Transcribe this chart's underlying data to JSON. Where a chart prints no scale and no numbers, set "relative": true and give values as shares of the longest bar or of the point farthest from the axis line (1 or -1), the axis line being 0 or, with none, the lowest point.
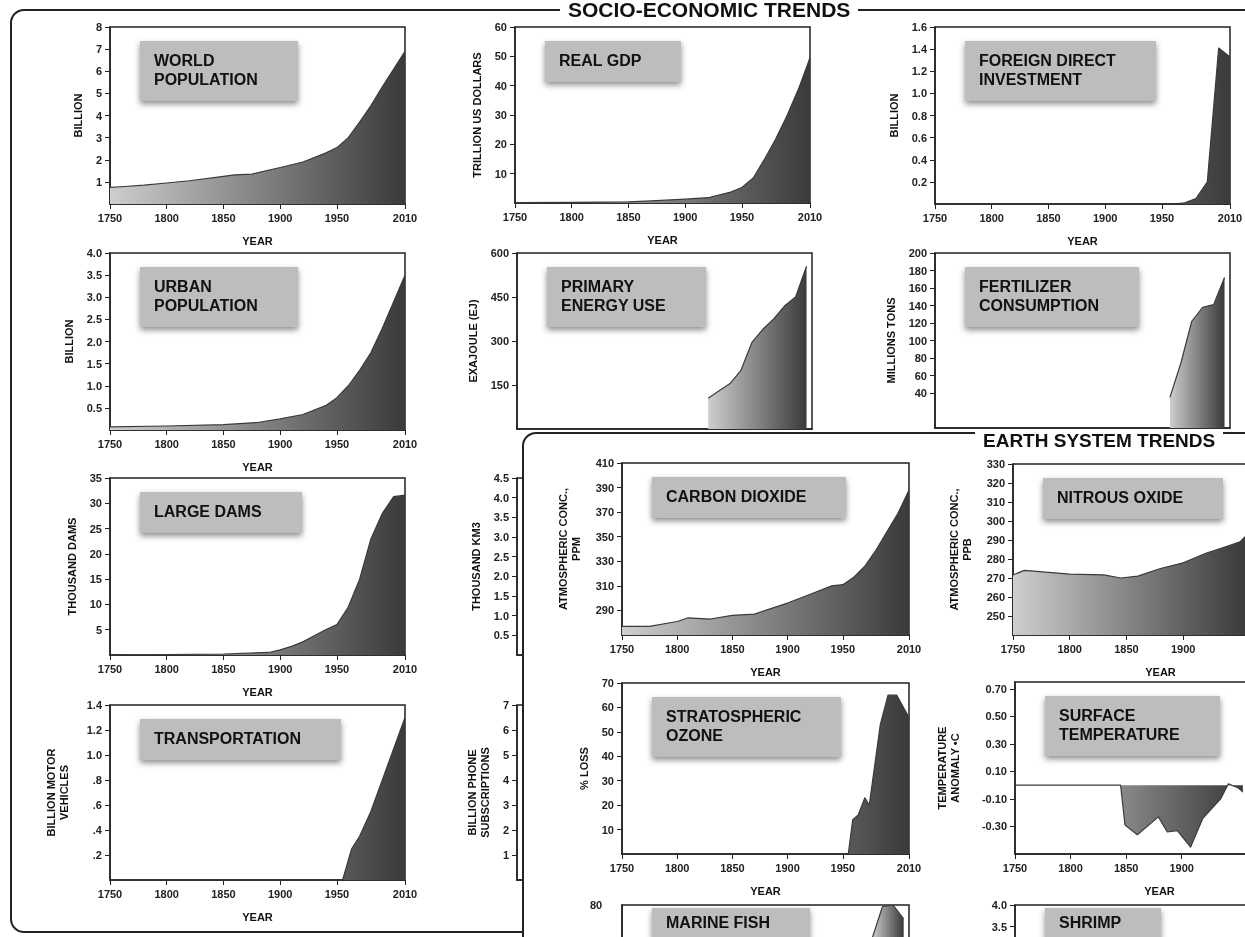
{
  "chart_data": [
    {
      "type": "other",
      "title": "SOCIO-ECONOMIC TRENDS"
    },
    {
      "type": "area",
      "title": "WORLD\nPOPULATION",
      "xlabel": "YEAR",
      "ylabel": "BILLION",
      "color": "#3a3a3a",
      "marker": "none",
      "xlim": [
        1750,
        2010
      ],
      "xticks": [
        1750,
        1800,
        1850,
        1900,
        1950,
        2010
      ],
      "ylim": [
        0,
        8
      ],
      "yticks": [
        1,
        2,
        3,
        4,
        5,
        6,
        7,
        8
      ],
      "x": [
        1750,
        1760,
        1780,
        1800,
        1820,
        1850,
        1860,
        1875,
        1900,
        1920,
        1940,
        1950,
        1960,
        1970,
        1980,
        1990,
        2000,
        2010
      ],
      "values": [
        0.75,
        0.78,
        0.85,
        0.95,
        1.05,
        1.25,
        1.32,
        1.35,
        1.65,
        1.9,
        2.3,
        2.55,
        3.0,
        3.7,
        4.45,
        5.3,
        6.1,
        6.9
      ]
    },
    {
      "type": "area",
      "title": "REAL GDP",
      "xlabel": "YEAR",
      "ylabel": "TRILLION US DOLLARS",
      "color": "#3a3a3a",
      "marker": "none",
      "xlim": [
        1750,
        2010
      ],
      "xticks": [
        1750,
        1800,
        1850,
        1900,
        1950,
        2010
      ],
      "ylim": [
        0,
        60
      ],
      "yticks": [
        10,
        20,
        30,
        40,
        50,
        60
      ],
      "x": [
        1750,
        1800,
        1850,
        1870,
        1900,
        1920,
        1940,
        1950,
        1960,
        1970,
        1980,
        1990,
        2000,
        2010
      ],
      "values": [
        0.1,
        0.2,
        0.4,
        0.7,
        1.3,
        1.8,
        3.7,
        5.3,
        8.5,
        15,
        22,
        30,
        39,
        49.5
      ]
    },
    {
      "type": "area",
      "title": "FOREIGN DIRECT\nINVESTMENT",
      "xlabel": "YEAR",
      "ylabel": "BILLION",
      "color": "#3a3a3a",
      "marker": "none",
      "xlim": [
        1750,
        2010
      ],
      "xticks": [
        1750,
        1800,
        1850,
        1900,
        1950,
        2010
      ],
      "ylim": [
        0,
        1.6
      ],
      "yticks": [
        0.2,
        0.4,
        0.6,
        0.8,
        {
          "value": 1,
          "label": "1.0"
        },
        1.2,
        1.4,
        1.6
      ],
      "x": [
        1750,
        1960,
        1970,
        1980,
        1990,
        2000,
        2010
      ],
      "values": [
        0,
        0,
        0.01,
        0.05,
        0.2,
        1.41,
        1.33
      ]
    },
    {
      "type": "area",
      "title": "URBAN\nPOPULATION",
      "xlabel": "YEAR",
      "ylabel": "BILLION",
      "color": "#3a3a3a",
      "marker": "none",
      "xlim": [
        1750,
        2010
      ],
      "xticks": [
        1750,
        1800,
        1850,
        1900,
        1950,
        2010
      ],
      "ylim": [
        0,
        4
      ],
      "yticks": [
        0.5,
        {
          "value": 1,
          "label": "1.0"
        },
        1.5,
        {
          "value": 2,
          "label": "2.0"
        },
        2.5,
        {
          "value": 3,
          "label": "3.0"
        },
        3.5,
        {
          "value": 4,
          "label": "4.0"
        }
      ],
      "x": [
        1750,
        1800,
        1850,
        1880,
        1900,
        1920,
        1940,
        1950,
        1960,
        1970,
        1980,
        1990,
        2000,
        2010
      ],
      "values": [
        0.07,
        0.09,
        0.12,
        0.17,
        0.25,
        0.35,
        0.55,
        0.73,
        1.0,
        1.35,
        1.75,
        2.3,
        2.9,
        3.5
      ]
    },
    {
      "type": "area",
      "title": "PRIMARY\nENERGY USE",
      "ylabel": "EXAJOULE (EJ)",
      "color": "#3a3a3a",
      "marker": "none",
      "ylim": [
        0,
        600
      ],
      "yticks": [
        150,
        300,
        450,
        600
      ],
      "categories": [
        null,
        null,
        null,
        null,
        null,
        null,
        null,
        null,
        null,
        null,
        null,
        null,
        null,
        null,
        null,
        null,
        null,
        null,
        null,
        null,
        null,
        null,
        null,
        null,
        null,
        null,
        null
      ],
      "values": [
        null,
        null,
        null,
        null,
        null,
        null,
        null,
        null,
        null,
        null,
        null,
        null,
        null,
        null,
        null,
        null,
        null,
        105,
        130,
        155,
        200,
        295,
        340,
        375,
        420,
        450,
        555
      ]
    },
    {
      "type": "area",
      "title": "FERTILIZER\nCONSUMPTION",
      "ylabel": "MILLIONS TONS",
      "color": "#3a3a3a",
      "marker": "none",
      "ylim": [
        0,
        200
      ],
      "yticks": [
        40,
        60,
        80,
        100,
        120,
        140,
        160,
        180,
        200
      ],
      "categories": [
        null,
        null,
        null,
        null,
        null,
        null,
        null,
        null,
        null,
        null,
        null,
        null,
        null,
        null,
        null,
        null,
        null,
        null,
        null,
        null,
        null,
        null,
        null,
        null,
        null,
        null,
        null
      ],
      "values": [
        null,
        null,
        null,
        null,
        null,
        null,
        null,
        null,
        null,
        null,
        null,
        null,
        null,
        null,
        null,
        null,
        null,
        null,
        null,
        null,
        null,
        35,
        74,
        122,
        138,
        141,
        172
      ]
    },
    {
      "type": "area",
      "title": "LARGE DAMS",
      "xlabel": "YEAR",
      "ylabel": "THOUSAND DAMS",
      "color": "#3a3a3a",
      "marker": "none",
      "xlim": [
        1750,
        2010
      ],
      "xticks": [
        1750,
        1800,
        1850,
        1900,
        1950,
        2010
      ],
      "ylim": [
        0,
        35
      ],
      "yticks": [
        5,
        10,
        15,
        20,
        25,
        30,
        35
      ],
      "x": [
        1750,
        1850,
        1890,
        1900,
        1910,
        1920,
        1930,
        1940,
        1950,
        1960,
        1970,
        1980,
        1990,
        2000,
        2010
      ],
      "values": [
        0,
        0.2,
        0.5,
        1.0,
        1.7,
        2.6,
        3.8,
        5,
        6,
        9.5,
        15,
        23,
        28,
        31.3,
        31.6
      ]
    },
    {
      "type": "area",
      "ylabel": "THOUSAND KM3",
      "color": "#3a3a3a",
      "marker": "none",
      "categories": [
        null,
        null,
        null,
        null,
        null,
        null,
        null,
        null,
        null,
        null,
        null,
        null,
        null,
        null,
        null,
        null,
        null,
        null,
        null,
        null,
        null,
        null,
        null,
        null,
        null,
        null,
        null
      ],
      "values": [
        null,
        null,
        null,
        null,
        null,
        null,
        null,
        null,
        null,
        null,
        null,
        null,
        null,
        null,
        null,
        null,
        null,
        null,
        null,
        null,
        null,
        null,
        null,
        null,
        null,
        null,
        null
      ],
      "ylim": [
        0,
        4.5
      ],
      "yticks": [
        0.5,
        {
          "value": 1,
          "label": "1.0"
        },
        1.5,
        {
          "value": 2,
          "label": "2.0"
        },
        2.5,
        {
          "value": 3,
          "label": "3.0"
        },
        3.5,
        {
          "value": 4,
          "label": "4.0"
        },
        4.5
      ]
    },
    {
      "type": "area",
      "title": "TRANSPORTATION",
      "xlabel": "YEAR",
      "ylabel": "BILLION MOTOR\nVEHICLES",
      "color": "#3a3a3a",
      "marker": "none",
      "xlim": [
        1750,
        2010
      ],
      "xticks": [
        1750,
        1800,
        1850,
        1900,
        1950,
        2010
      ],
      "ylim": [
        0,
        1.4
      ],
      "yticks": [
        {
          "value": 0.2,
          "label": ".2"
        },
        {
          "value": 0.4,
          "label": ".4"
        },
        {
          "value": 0.6,
          "label": ".6"
        },
        {
          "value": 0.8,
          "label": ".8"
        },
        {
          "value": 1,
          "label": "1.0"
        },
        1.2,
        1.4
      ],
      "x": [
        1750,
        1955,
        1963,
        1970,
        1980,
        1990,
        2000,
        2010
      ],
      "values": [
        0,
        0,
        0.25,
        0.35,
        0.55,
        0.8,
        1.05,
        1.3
      ]
    },
    {
      "type": "area",
      "ylabel": "BILLION PHONE\nSUBSCRIPTIONS",
      "color": "#3a3a3a",
      "marker": "none",
      "categories": [
        null,
        null,
        null,
        null,
        null,
        null,
        null,
        null,
        null,
        null,
        null,
        null,
        null,
        null,
        null,
        null,
        null,
        null,
        null,
        null,
        null,
        null,
        null,
        null,
        null,
        null,
        null
      ],
      "values": [
        null,
        null,
        null,
        null,
        null,
        null,
        null,
        null,
        null,
        null,
        null,
        null,
        null,
        null,
        null,
        null,
        null,
        null,
        null,
        null,
        null,
        null,
        null,
        null,
        null,
        null,
        null
      ],
      "ylim": [
        0,
        7
      ],
      "yticks": [
        1,
        2,
        3,
        4,
        5,
        6,
        7
      ]
    },
    {
      "type": "other",
      "title": "EARTH SYSTEM TRENDS"
    },
    {
      "type": "area",
      "title": "CARBON DIOXIDE",
      "xlabel": "YEAR",
      "ylabel": "ATMOSPHERIC CONC.,\nPPM",
      "color": "#3a3a3a",
      "marker": "none",
      "xlim": [
        1750,
        2010
      ],
      "xticks": [
        1750,
        1800,
        1850,
        1900,
        1950,
        2010
      ],
      "ylim": [
        270,
        410
      ],
      "yticks": [
        290,
        310,
        330,
        350,
        370,
        390,
        410
      ],
      "x": [
        1750,
        1775,
        1800,
        1810,
        1830,
        1850,
        1870,
        1880,
        1900,
        1920,
        1940,
        1950,
        1960,
        1970,
        1980,
        1990,
        2000,
        2010
      ],
      "values": [
        277,
        277,
        281,
        284,
        283,
        286,
        287,
        290,
        296,
        303,
        310,
        311,
        317,
        326,
        339,
        354,
        369,
        388
      ]
    },
    {
      "type": "area",
      "title": "NITROUS OXIDE",
      "xlabel": "YEAR",
      "ylabel": "ATMOSPHERIC CONC.,\nPPB",
      "color": "#3a3a3a",
      "marker": "none",
      "xlim": [
        1750,
        2010
      ],
      "xticks": [
        1750,
        1800,
        1850,
        1900
      ],
      "ylim": [
        240,
        330
      ],
      "yticks": [
        250,
        260,
        270,
        280,
        290,
        300,
        310,
        320,
        330
      ],
      "x": [
        1750,
        1760,
        1800,
        1830,
        1845,
        1860,
        1880,
        1900,
        1920,
        1940,
        1950,
        1955
      ],
      "values": [
        271.6,
        274,
        272,
        271.6,
        270,
        271,
        275,
        278,
        283,
        287,
        289,
        292
      ]
    },
    {
      "type": "area",
      "title": "STRATOSPHERIC\nOZONE",
      "xlabel": "YEAR",
      "ylabel": "% LOSS",
      "color": "#3a3a3a",
      "marker": "none",
      "xlim": [
        1750,
        2010
      ],
      "xticks": [
        1750,
        1800,
        1850,
        1900,
        1950,
        2010
      ],
      "ylim": [
        0,
        70
      ],
      "yticks": [
        10,
        20,
        30,
        40,
        50,
        60,
        70
      ],
      "x": [
        1750,
        1955,
        1959,
        1964,
        1970,
        1974,
        1984,
        1991,
        1999,
        2005,
        2010
      ],
      "values": [
        0,
        0,
        14,
        16,
        23,
        20,
        53,
        65,
        65,
        60,
        56
      ]
    },
    {
      "type": "area",
      "title": "SURFACE\nTEMPERATURE",
      "xlabel": "YEAR",
      "ylabel": "TEMPERATURE\nANOMALY •C",
      "color": "#3a3a3a",
      "marker": "none",
      "xlim": [
        1750,
        2010
      ],
      "xticks": [
        1750,
        1800,
        1850,
        1900
      ],
      "ylim": [
        -0.5,
        0.75
      ],
      "yticks": [
        {
          "value": -0.3,
          "label": "-0.30"
        },
        {
          "value": -0.1,
          "label": "-0.10"
        },
        {
          "value": 0.1,
          "label": "0.10"
        },
        {
          "value": 0.3,
          "label": "0.30"
        },
        {
          "value": 0.5,
          "label": "0.50"
        },
        {
          "value": 0.7,
          "label": "0.70"
        }
      ],
      "x": [
        1750,
        1845,
        1849,
        1860,
        1879,
        1887,
        1896,
        1908,
        1919,
        1935,
        1942,
        1951,
        1955
      ],
      "values": [
        0,
        0,
        -0.29,
        -0.36,
        -0.23,
        -0.34,
        -0.33,
        -0.45,
        -0.24,
        -0.1,
        0.01,
        -0.02,
        -0.05
      ]
    },
    {
      "type": "area",
      "title": "MARINE FISH",
      "color": "#3a3a3a",
      "marker": "none",
      "relative": true,
      "annotations": [
        "80"
      ],
      "categories": [
        null,
        null,
        null,
        null,
        null,
        null,
        null,
        null,
        null,
        null,
        null,
        null,
        null,
        null,
        null,
        null,
        null,
        null,
        null,
        null,
        null,
        null,
        null,
        null,
        null,
        null,
        null
      ],
      "values": [
        null,
        null,
        null,
        null,
        null,
        null,
        null,
        null,
        null,
        null,
        null,
        null,
        null,
        null,
        null,
        null,
        null,
        null,
        null,
        null,
        null,
        null,
        null,
        0.8,
        0.99,
        1,
        0.92
      ]
    },
    {
      "type": "area",
      "title": "SHRIMP",
      "color": "#3a3a3a",
      "marker": "none",
      "categories": [
        null,
        null,
        null,
        null,
        null,
        null,
        null,
        null,
        null,
        null,
        null,
        null,
        null,
        null,
        null,
        null,
        null,
        null,
        null,
        null,
        null,
        null,
        null,
        null,
        null,
        null,
        null
      ],
      "values": [
        null,
        null,
        null,
        null,
        null,
        null,
        null,
        null,
        null,
        null,
        null,
        null,
        null,
        null,
        null,
        null,
        null,
        null,
        null,
        null,
        null,
        null,
        null,
        null,
        null,
        null,
        null
      ],
      "ylim": [
        0,
        4
      ],
      "yticks": [
        3.5,
        {
          "value": 4,
          "label": "4.0"
        }
      ]
    }
  ]
}
